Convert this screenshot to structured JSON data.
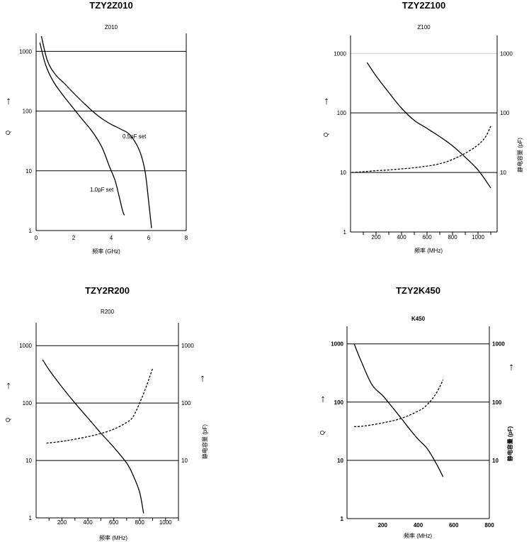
{
  "figure": "Q and capacitance vs frequency characteristics",
  "chart_data": [
    {
      "type": "line",
      "title": "TZY2Z010",
      "subtitle": "Z010",
      "xlabel": "频率 (GHz)",
      "ylabel": "Q",
      "y_arrow": "↑",
      "xlim": [
        0,
        8
      ],
      "x_ticks": [
        "0",
        "2",
        "4",
        "6",
        "8"
      ],
      "y_scale": "log",
      "ylim": [
        1,
        2000
      ],
      "y_ticks": [
        "1",
        "10",
        "100",
        "1000"
      ],
      "series": [
        {
          "name": "0.5pF set",
          "axis": "left",
          "style": "solid",
          "x": [
            0.28,
            0.6,
            1.0,
            1.5,
            2.0,
            2.5,
            3.0,
            3.5,
            4.0,
            4.5,
            5.0,
            5.5,
            5.8,
            6.0,
            6.15
          ],
          "y": [
            1800,
            700,
            420,
            290,
            200,
            140,
            100,
            75,
            60,
            50,
            40,
            22,
            10,
            3,
            1.1
          ]
        },
        {
          "name": "1.0pF set",
          "axis": "left",
          "style": "solid",
          "x": [
            0.2,
            0.5,
            0.9,
            1.4,
            2.0,
            2.5,
            3.0,
            3.5,
            3.9,
            4.2,
            4.4,
            4.6,
            4.7
          ],
          "y": [
            1400,
            600,
            320,
            190,
            110,
            70,
            45,
            25,
            12,
            7,
            4,
            2.2,
            1.8
          ]
        }
      ],
      "annotations": [
        "0.5pF set",
        "1.0pF set"
      ]
    },
    {
      "type": "line",
      "title": "TZY2Z100",
      "subtitle": "Z100",
      "xlabel": "频率 (MHz)",
      "ylabel": "Q",
      "y2label": "静电容量 (pF)",
      "y_arrow": "↑",
      "y2_arrow": "↑",
      "xlim": [
        0,
        1150
      ],
      "x_ticks": [
        "200",
        "400",
        "600",
        "800",
        "1000"
      ],
      "y_scale": "log",
      "ylim": [
        1,
        2000
      ],
      "y_ticks": [
        "1",
        "10",
        "100",
        "1000"
      ],
      "y2_ticks": [
        "10",
        "100",
        "1000"
      ],
      "series": [
        {
          "name": "Q",
          "axis": "left",
          "style": "solid",
          "x": [
            130,
            200,
            300,
            400,
            500,
            600,
            700,
            800,
            900,
            1000,
            1100
          ],
          "y": [
            700,
            420,
            220,
            120,
            75,
            55,
            40,
            28,
            18,
            11,
            5.5
          ]
        },
        {
          "name": "Capacitance",
          "axis": "right",
          "style": "dashed",
          "x": [
            10,
            100,
            200,
            300,
            400,
            500,
            600,
            700,
            800,
            900,
            1000,
            1060,
            1100
          ],
          "y": [
            10,
            10.3,
            10.7,
            11,
            11.5,
            12,
            12.8,
            14,
            16.5,
            21,
            29,
            40,
            60
          ]
        }
      ]
    },
    {
      "type": "line",
      "title": "TZY2R200",
      "subtitle": "R200",
      "xlabel": "频率 (MHz)",
      "ylabel": "Q",
      "y2label": "静电容量 (pF)",
      "y_arrow": "↑",
      "y2_arrow": "↑",
      "xlim": [
        0,
        1100
      ],
      "x_ticks": [
        "200",
        "400",
        "600",
        "800",
        "1000"
      ],
      "y_scale": "log",
      "ylim": [
        1,
        2500
      ],
      "y_ticks": [
        "1",
        "10",
        "100",
        "1000"
      ],
      "y2_ticks": [
        "10",
        "100",
        "1000"
      ],
      "series": [
        {
          "name": "Q",
          "axis": "left",
          "style": "solid",
          "x": [
            50,
            100,
            200,
            300,
            400,
            500,
            600,
            700,
            750,
            800,
            830
          ],
          "y": [
            570,
            380,
            190,
            100,
            55,
            30,
            17,
            9,
            5.5,
            2.8,
            1.2
          ]
        },
        {
          "name": "Capacitance",
          "axis": "right",
          "style": "dashed",
          "x": [
            80,
            200,
            300,
            400,
            500,
            600,
            700,
            750,
            800,
            850,
            900
          ],
          "y": [
            20,
            21.5,
            23.5,
            26,
            29.5,
            35,
            46,
            58,
            100,
            190,
            400
          ]
        }
      ]
    },
    {
      "type": "line",
      "title": "TZY2K450",
      "subtitle": "K450",
      "xlabel": "频率 (MHz)",
      "ylabel": "Q",
      "y2label": "静电容量 (pF)",
      "y_arrow": "↑",
      "y2_arrow": "↑",
      "xlim": [
        0,
        800
      ],
      "x_ticks": [
        "200",
        "400",
        "600",
        "800"
      ],
      "y_scale": "log",
      "ylim": [
        1,
        2000
      ],
      "y_ticks": [
        "1",
        "10",
        "100",
        "1000"
      ],
      "y2_ticks": [
        "10",
        "100",
        "1000"
      ],
      "series": [
        {
          "name": "Q",
          "axis": "left",
          "style": "solid",
          "x": [
            40,
            80,
            140,
            200,
            250,
            300,
            350,
            400,
            450,
            500,
            540
          ],
          "y": [
            1000,
            500,
            200,
            130,
            85,
            55,
            35,
            23,
            16,
            9,
            5.2
          ]
        },
        {
          "name": "Capacitance",
          "axis": "right",
          "style": "dashed",
          "x": [
            40,
            100,
            200,
            300,
            400,
            450,
            500,
            540
          ],
          "y": [
            38,
            39,
            44,
            52,
            70,
            90,
            140,
            240
          ]
        }
      ]
    }
  ]
}
